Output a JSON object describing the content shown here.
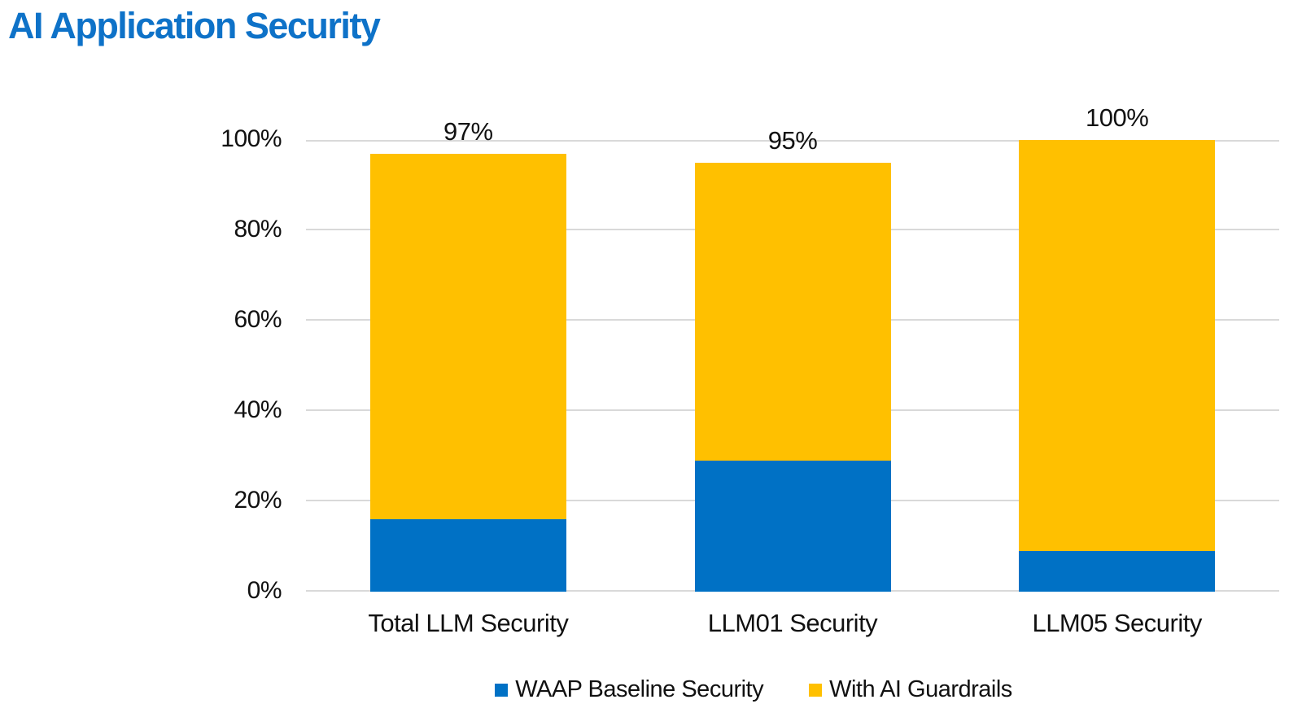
{
  "title": "AI Application Security",
  "colors": {
    "title": "#0E72C8",
    "baseline_blue": "#0071C5",
    "guardrails_yellow": "#FFC000",
    "gridline": "#D9D9D9",
    "text": "#111111"
  },
  "chart_data": {
    "type": "bar",
    "stacked": true,
    "title": "AI Application Security",
    "categories": [
      "Total LLM Security",
      "LLM01 Security",
      "LLM05 Security"
    ],
    "series": [
      {
        "name": "WAAP Baseline Security",
        "color": "#0071C5",
        "values": [
          16,
          29,
          9
        ]
      },
      {
        "name": "With AI Guardrails",
        "color": "#FFC000",
        "values": [
          81,
          66,
          91
        ]
      }
    ],
    "totals": [
      97,
      95,
      100
    ],
    "total_labels": [
      "97%",
      "95%",
      "100%"
    ],
    "y_ticks": [
      "0%",
      "20%",
      "40%",
      "60%",
      "80%",
      "100%"
    ],
    "ylim": [
      0,
      100
    ],
    "grid": true,
    "legend_position": "bottom"
  }
}
